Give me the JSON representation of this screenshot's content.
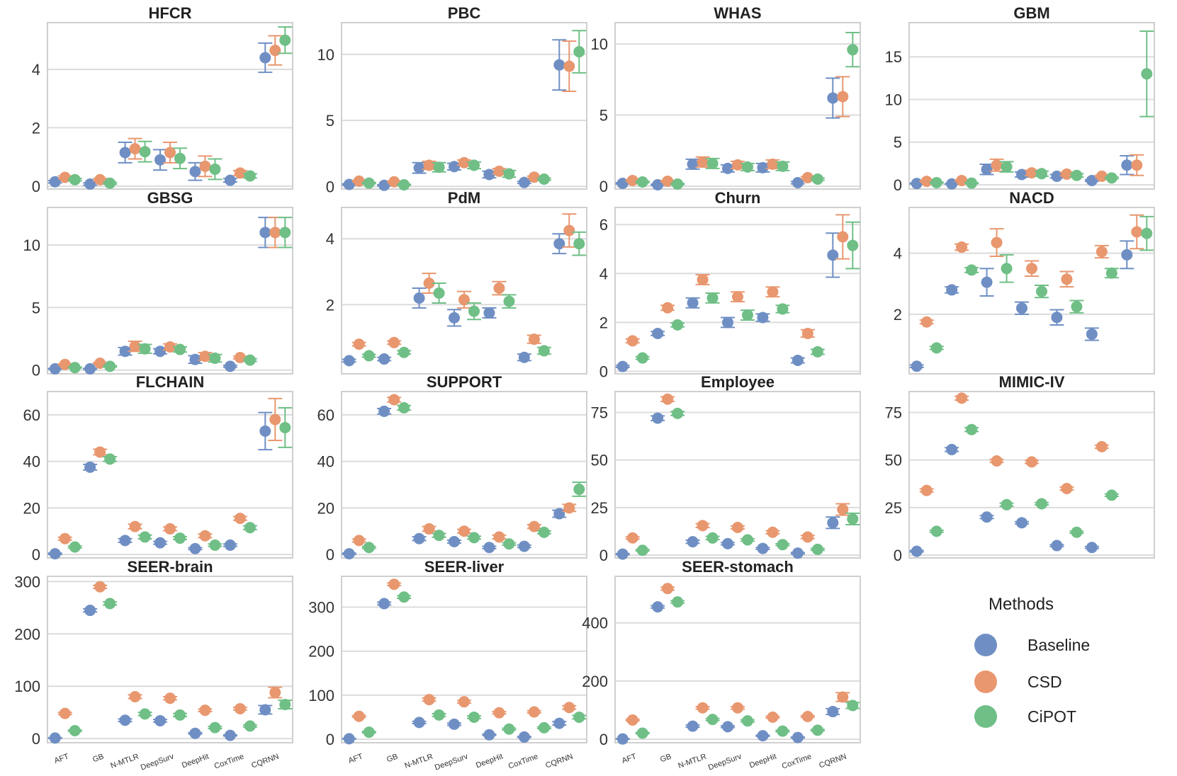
{
  "colors": {
    "Baseline": "#6f8fc4",
    "CSD": "#e8976f",
    "CiPOT": "#6fbf86"
  },
  "methods": [
    "AFT",
    "GB",
    "N-MTLR",
    "DeepSurv",
    "DeepHit",
    "CoxTime",
    "CQRNN"
  ],
  "legend": {
    "title": "Methods",
    "items": [
      "Baseline",
      "CSD",
      "CiPOT"
    ]
  },
  "chart_data": [
    {
      "type": "scatter",
      "title": "HFCR",
      "ylim": [
        -0.1,
        5.6
      ],
      "yticks": [
        0,
        2,
        4
      ],
      "series": [
        {
          "name": "Baseline",
          "values": [
            0.15,
            0.07,
            1.15,
            0.9,
            0.5,
            0.2,
            4.4
          ],
          "err": [
            0.04,
            0.04,
            0.35,
            0.35,
            0.3,
            0.06,
            0.5
          ]
        },
        {
          "name": "CSD",
          "values": [
            0.3,
            0.22,
            1.28,
            1.15,
            0.68,
            0.45,
            4.65
          ],
          "err": [
            0.05,
            0.04,
            0.35,
            0.35,
            0.35,
            0.08,
            0.5
          ]
        },
        {
          "name": "CiPOT",
          "values": [
            0.22,
            0.1,
            1.18,
            0.95,
            0.58,
            0.35,
            5.0
          ],
          "err": [
            0.04,
            0.03,
            0.35,
            0.35,
            0.35,
            0.07,
            0.45
          ]
        }
      ]
    },
    {
      "type": "scatter",
      "title": "PBC",
      "ylim": [
        -0.2,
        12.4
      ],
      "yticks": [
        0,
        5,
        10
      ],
      "series": [
        {
          "name": "Baseline",
          "values": [
            0.15,
            0.08,
            1.4,
            1.5,
            0.9,
            0.3,
            9.2
          ],
          "err": [
            0.05,
            0.04,
            0.4,
            0.25,
            0.25,
            0.08,
            1.9
          ]
        },
        {
          "name": "CSD",
          "values": [
            0.4,
            0.35,
            1.6,
            1.8,
            1.15,
            0.7,
            9.1
          ],
          "err": [
            0.06,
            0.05,
            0.3,
            0.2,
            0.2,
            0.08,
            1.9
          ]
        },
        {
          "name": "CiPOT",
          "values": [
            0.25,
            0.12,
            1.45,
            1.6,
            0.95,
            0.55,
            10.2
          ],
          "err": [
            0.05,
            0.04,
            0.35,
            0.25,
            0.25,
            0.08,
            1.6
          ]
        }
      ]
    },
    {
      "type": "scatter",
      "title": "WHAS",
      "ylim": [
        -0.2,
        11.5
      ],
      "yticks": [
        0,
        5,
        10
      ],
      "series": [
        {
          "name": "Baseline",
          "values": [
            0.2,
            0.1,
            1.55,
            1.25,
            1.3,
            0.25,
            6.2
          ],
          "err": [
            0.05,
            0.04,
            0.35,
            0.25,
            0.3,
            0.08,
            1.4
          ]
        },
        {
          "name": "CSD",
          "values": [
            0.4,
            0.35,
            1.7,
            1.5,
            1.55,
            0.6,
            6.3
          ],
          "err": [
            0.06,
            0.05,
            0.35,
            0.25,
            0.3,
            0.08,
            1.4
          ]
        },
        {
          "name": "CiPOT",
          "values": [
            0.3,
            0.15,
            1.6,
            1.35,
            1.4,
            0.5,
            9.6
          ],
          "err": [
            0.05,
            0.04,
            0.35,
            0.25,
            0.3,
            0.08,
            1.2
          ]
        }
      ]
    },
    {
      "type": "scatter",
      "title": "GBM",
      "ylim": [
        -0.5,
        19.0
      ],
      "yticks": [
        0,
        5,
        10,
        15
      ],
      "series": [
        {
          "name": "Baseline",
          "values": [
            0.15,
            0.1,
            1.8,
            1.2,
            1.0,
            0.5,
            2.3
          ],
          "err": [
            0.05,
            0.04,
            0.6,
            0.3,
            0.2,
            0.1,
            1.1
          ]
        },
        {
          "name": "CSD",
          "values": [
            0.4,
            0.5,
            2.3,
            1.4,
            1.25,
            1.0,
            2.3
          ],
          "err": [
            0.06,
            0.06,
            0.7,
            0.3,
            0.2,
            0.12,
            1.2
          ]
        },
        {
          "name": "CiPOT",
          "values": [
            0.25,
            0.2,
            2.1,
            1.3,
            1.1,
            0.8,
            13.0
          ],
          "err": [
            0.05,
            0.04,
            0.6,
            0.3,
            0.2,
            0.1,
            5.0
          ]
        }
      ]
    },
    {
      "type": "scatter",
      "title": "GBSG",
      "ylim": [
        -0.3,
        13.0
      ],
      "yticks": [
        0,
        5,
        10
      ],
      "series": [
        {
          "name": "Baseline",
          "values": [
            0.1,
            0.1,
            1.5,
            1.5,
            0.85,
            0.3,
            11.0
          ],
          "err": [
            0.03,
            0.03,
            0.3,
            0.2,
            0.3,
            0.08,
            1.2
          ]
        },
        {
          "name": "CSD",
          "values": [
            0.45,
            0.55,
            1.9,
            1.85,
            1.1,
            1.0,
            11.0
          ],
          "err": [
            0.05,
            0.06,
            0.4,
            0.25,
            0.3,
            0.1,
            1.2
          ]
        },
        {
          "name": "CiPOT",
          "values": [
            0.2,
            0.3,
            1.7,
            1.65,
            0.95,
            0.8,
            11.0
          ],
          "err": [
            0.04,
            0.05,
            0.35,
            0.2,
            0.3,
            0.1,
            1.2
          ]
        }
      ]
    },
    {
      "type": "scatter",
      "title": "PdM",
      "ylim": [
        -0.1,
        4.95
      ],
      "yticks": [
        2,
        4
      ],
      "series": [
        {
          "name": "Baseline",
          "values": [
            0.3,
            0.35,
            2.2,
            1.6,
            1.75,
            0.4,
            3.85
          ],
          "err": [
            0.04,
            0.05,
            0.3,
            0.25,
            0.15,
            0.1,
            0.3
          ]
        },
        {
          "name": "CSD",
          "values": [
            0.8,
            0.85,
            2.65,
            2.15,
            2.5,
            0.95,
            4.25
          ],
          "err": [
            0.05,
            0.05,
            0.3,
            0.25,
            0.2,
            0.12,
            0.5
          ]
        },
        {
          "name": "CiPOT",
          "values": [
            0.45,
            0.55,
            2.35,
            1.8,
            2.1,
            0.6,
            3.85
          ],
          "err": [
            0.04,
            0.05,
            0.3,
            0.25,
            0.2,
            0.1,
            0.35
          ]
        }
      ]
    },
    {
      "type": "scatter",
      "title": "Churn",
      "ylim": [
        -0.1,
        6.7
      ],
      "yticks": [
        0,
        2,
        4,
        6
      ],
      "series": [
        {
          "name": "Baseline",
          "values": [
            0.2,
            1.55,
            2.8,
            2.0,
            2.2,
            0.45,
            4.75
          ],
          "err": [
            0.04,
            0.08,
            0.2,
            0.2,
            0.15,
            0.1,
            0.9
          ]
        },
        {
          "name": "CSD",
          "values": [
            1.25,
            2.6,
            3.75,
            3.05,
            3.25,
            1.55,
            5.5
          ],
          "err": [
            0.08,
            0.1,
            0.2,
            0.2,
            0.2,
            0.15,
            0.9
          ]
        },
        {
          "name": "CiPOT",
          "values": [
            0.55,
            1.9,
            3.0,
            2.3,
            2.55,
            0.8,
            5.15
          ],
          "err": [
            0.05,
            0.08,
            0.2,
            0.2,
            0.15,
            0.1,
            0.95
          ]
        }
      ]
    },
    {
      "type": "scatter",
      "title": "NACD",
      "ylim": [
        0.05,
        5.5
      ],
      "yticks": [
        2,
        4
      ],
      "series": [
        {
          "name": "Baseline",
          "values": [
            0.3,
            2.8,
            3.05,
            2.2,
            1.9,
            1.35,
            3.95
          ],
          "err": [
            0.04,
            0.1,
            0.45,
            0.2,
            0.25,
            0.2,
            0.45
          ]
        },
        {
          "name": "CSD",
          "values": [
            1.75,
            4.2,
            4.35,
            3.5,
            3.15,
            4.05,
            4.7
          ],
          "err": [
            0.06,
            0.1,
            0.45,
            0.25,
            0.25,
            0.2,
            0.55
          ]
        },
        {
          "name": "CiPOT",
          "values": [
            0.9,
            3.45,
            3.5,
            2.75,
            2.25,
            3.35,
            4.65
          ],
          "err": [
            0.05,
            0.08,
            0.45,
            0.2,
            0.2,
            0.15,
            0.55
          ]
        }
      ]
    },
    {
      "type": "scatter",
      "title": "FLCHAIN",
      "ylim": [
        -1.5,
        70
      ],
      "yticks": [
        0,
        20,
        40,
        60
      ],
      "series": [
        {
          "name": "Baseline",
          "values": [
            0.3,
            37.5,
            6.0,
            5.0,
            2.5,
            4.0,
            53.0
          ],
          "err": [
            0.3,
            1.2,
            0.8,
            0.6,
            0.4,
            0.5,
            8.0
          ]
        },
        {
          "name": "CSD",
          "values": [
            6.8,
            44.0,
            12.0,
            11.0,
            8.0,
            15.5,
            58.0
          ],
          "err": [
            0.6,
            1.2,
            1.0,
            0.8,
            0.8,
            0.8,
            9.0
          ]
        },
        {
          "name": "CiPOT",
          "values": [
            3.2,
            41.0,
            7.5,
            7.0,
            4.0,
            11.5,
            54.5
          ],
          "err": [
            0.4,
            1.0,
            0.8,
            0.6,
            0.5,
            0.8,
            8.5
          ]
        }
      ]
    },
    {
      "type": "scatter",
      "title": "SUPPORT",
      "ylim": [
        -1.5,
        70
      ],
      "yticks": [
        0,
        20,
        40,
        60
      ],
      "series": [
        {
          "name": "Baseline",
          "values": [
            0.3,
            61.5,
            6.8,
            5.5,
            3.0,
            3.5,
            17.5
          ],
          "err": [
            0.3,
            1.2,
            0.8,
            0.6,
            0.5,
            0.5,
            1.5
          ]
        },
        {
          "name": "CSD",
          "values": [
            6.0,
            66.5,
            11.0,
            10.0,
            7.5,
            12.0,
            20.0
          ],
          "err": [
            0.6,
            1.0,
            1.0,
            0.8,
            0.8,
            0.8,
            1.5
          ]
        },
        {
          "name": "CiPOT",
          "values": [
            3.0,
            63.0,
            8.2,
            7.2,
            4.5,
            9.5,
            28.0
          ],
          "err": [
            0.4,
            1.0,
            0.8,
            0.6,
            0.5,
            0.6,
            3.0
          ]
        }
      ]
    },
    {
      "type": "scatter",
      "title": "Employee",
      "ylim": [
        -1.5,
        86
      ],
      "yticks": [
        0,
        25,
        50,
        75
      ],
      "series": [
        {
          "name": "Baseline",
          "values": [
            0.5,
            72.0,
            7.0,
            6.0,
            3.5,
            1.0,
            17.0
          ],
          "err": [
            0.3,
            1.2,
            0.8,
            0.6,
            0.5,
            0.4,
            3.0
          ]
        },
        {
          "name": "CSD",
          "values": [
            9.0,
            82.0,
            15.5,
            14.5,
            12.0,
            9.5,
            24.0
          ],
          "err": [
            0.6,
            1.2,
            1.0,
            0.8,
            0.8,
            0.8,
            3.0
          ]
        },
        {
          "name": "CiPOT",
          "values": [
            2.5,
            74.5,
            9.0,
            8.0,
            5.5,
            3.0,
            19.0
          ],
          "err": [
            0.4,
            1.0,
            0.8,
            0.6,
            0.5,
            0.5,
            3.0
          ]
        }
      ]
    },
    {
      "type": "scatter",
      "title": "MIMIC-IV",
      "ylim": [
        -1.5,
        86
      ],
      "yticks": [
        0,
        25,
        50,
        75
      ],
      "series": [
        {
          "name": "Baseline",
          "values": [
            2.0,
            55.5,
            20.0,
            17.0,
            5.0,
            4.0
          ],
          "err": [
            0.4,
            1.0,
            0.8,
            0.6,
            0.5,
            0.5
          ]
        },
        {
          "name": "CSD",
          "values": [
            34.0,
            82.5,
            49.5,
            49.0,
            35.0,
            57.0
          ],
          "err": [
            0.8,
            1.0,
            0.8,
            0.8,
            0.8,
            0.8
          ]
        },
        {
          "name": "CiPOT",
          "values": [
            12.5,
            66.0,
            26.5,
            27.0,
            12.0,
            31.5
          ],
          "err": [
            0.5,
            1.0,
            0.8,
            0.6,
            0.5,
            0.6
          ]
        }
      ]
    },
    {
      "type": "scatter",
      "title": "SEER-brain",
      "ylim": [
        -8,
        310
      ],
      "yticks": [
        0,
        100,
        200,
        300
      ],
      "series": [
        {
          "name": "Baseline",
          "values": [
            1.0,
            245.0,
            35.0,
            34.0,
            10.0,
            6.0,
            55.0
          ],
          "err": [
            0.6,
            3.0,
            2.5,
            2.5,
            1.5,
            1.0,
            8.0
          ]
        },
        {
          "name": "CSD",
          "values": [
            48.0,
            290.0,
            80.0,
            77.0,
            54.0,
            57.0,
            88.0
          ],
          "err": [
            2.0,
            3.0,
            3.5,
            3.0,
            2.5,
            2.5,
            10.0
          ]
        },
        {
          "name": "CiPOT",
          "values": [
            15.0,
            258.0,
            47.0,
            45.0,
            21.0,
            24.0,
            65.0
          ],
          "err": [
            1.5,
            3.0,
            3.0,
            3.0,
            2.0,
            2.0,
            8.0
          ]
        }
      ]
    },
    {
      "type": "scatter",
      "title": "SEER-liver",
      "ylim": [
        -8,
        370
      ],
      "yticks": [
        0,
        100,
        200,
        300
      ],
      "series": [
        {
          "name": "Baseline",
          "values": [
            1.0,
            308.0,
            38.0,
            34.0,
            10.0,
            5.0,
            36.0
          ],
          "err": [
            0.6,
            3.0,
            2.5,
            2.5,
            1.5,
            1.0,
            4.0
          ]
        },
        {
          "name": "CSD",
          "values": [
            52.0,
            352.0,
            90.0,
            85.0,
            60.0,
            62.0,
            72.0
          ],
          "err": [
            2.0,
            3.0,
            3.5,
            3.0,
            2.5,
            2.5,
            4.0
          ]
        },
        {
          "name": "CiPOT",
          "values": [
            16.0,
            323.0,
            55.0,
            50.0,
            23.0,
            26.0,
            50.0
          ],
          "err": [
            1.5,
            3.0,
            3.0,
            3.0,
            2.0,
            2.0,
            4.0
          ]
        }
      ]
    },
    {
      "type": "scatter",
      "title": "SEER-stomach",
      "ylim": [
        -12,
        560
      ],
      "yticks": [
        0,
        200,
        400
      ],
      "series": [
        {
          "name": "Baseline",
          "values": [
            1.0,
            455.0,
            45.0,
            43.0,
            12.0,
            6.0,
            95.0
          ],
          "err": [
            0.8,
            4.0,
            3.5,
            3.0,
            2.0,
            1.5,
            10.0
          ]
        },
        {
          "name": "CSD",
          "values": [
            66.0,
            518.0,
            108.0,
            108.0,
            76.0,
            78.0,
            145.0
          ],
          "err": [
            3.0,
            5.0,
            4.0,
            4.0,
            3.0,
            3.0,
            15.0
          ]
        },
        {
          "name": "CiPOT",
          "values": [
            21.0,
            472.0,
            68.0,
            63.0,
            28.0,
            31.0,
            116.0
          ],
          "err": [
            2.0,
            4.0,
            3.5,
            3.5,
            2.5,
            2.5,
            10.0
          ]
        }
      ]
    }
  ]
}
